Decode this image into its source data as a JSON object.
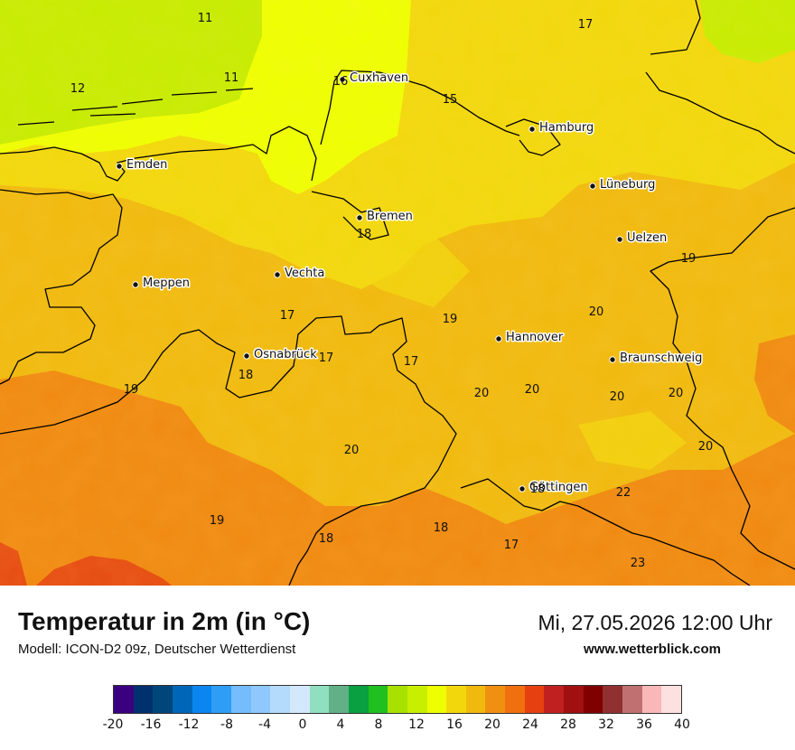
{
  "title": "Temperatur in 2m (in °C)",
  "subtitle": "Modell: ICON-D2 09z, Deutscher Wetterdienst",
  "datetime": "Mi, 27.05.2026 12:00 Uhr",
  "website": "www.wetterblick.com",
  "colors": {
    "sea": "#c6ec00",
    "coast_band": "#eeff00",
    "land_base": "#f0b90e",
    "land_north": "#f2d70c",
    "land_south": "#f08810",
    "hot": "#e64a10",
    "border_line": "#000000"
  },
  "cities": [
    {
      "id": "cuxhaven",
      "name": "Cuxhaven"
    },
    {
      "id": "hamburg",
      "name": "Hamburg"
    },
    {
      "id": "emden",
      "name": "Emden"
    },
    {
      "id": "lueneburg",
      "name": "Lüneburg"
    },
    {
      "id": "bremen",
      "name": "Bremen"
    },
    {
      "id": "uelzen",
      "name": "Uelzen"
    },
    {
      "id": "meppen",
      "name": "Meppen"
    },
    {
      "id": "vechta",
      "name": "Vechta"
    },
    {
      "id": "hannover",
      "name": "Hannover"
    },
    {
      "id": "osnabrueck",
      "name": "Osnabrück"
    },
    {
      "id": "braunschweig",
      "name": "Braunschweig"
    },
    {
      "id": "goettingen",
      "name": "Göttingen"
    }
  ],
  "temperatures": [
    "11",
    "17",
    "12",
    "11",
    "16",
    "15",
    "18",
    "19",
    "17",
    "19",
    "20",
    "17",
    "18",
    "17",
    "19",
    "20",
    "20",
    "20",
    "20",
    "20",
    "20",
    "18",
    "22",
    "19",
    "18",
    "18",
    "17",
    "23"
  ],
  "colorbar": {
    "colors": [
      "#3b0080",
      "#00306e",
      "#00467a",
      "#0066b8",
      "#0a86f0",
      "#2e9df5",
      "#74bcfc",
      "#8ec8fc",
      "#b4dafc",
      "#d4e8fc",
      "#90dfc0",
      "#62b087",
      "#08a040",
      "#20c020",
      "#a8e000",
      "#c8ef00",
      "#eeff00",
      "#f2d70c",
      "#f0b90e",
      "#f09010",
      "#f07010",
      "#e64010",
      "#c02020",
      "#a01010",
      "#800000",
      "#903030",
      "#c07070",
      "#f8b8b8",
      "#fde0e0"
    ],
    "ticks": [
      "-20",
      "-16",
      "-12",
      "-8",
      "-4",
      "0",
      "4",
      "8",
      "12",
      "16",
      "20",
      "24",
      "28",
      "32",
      "36",
      "40"
    ]
  }
}
